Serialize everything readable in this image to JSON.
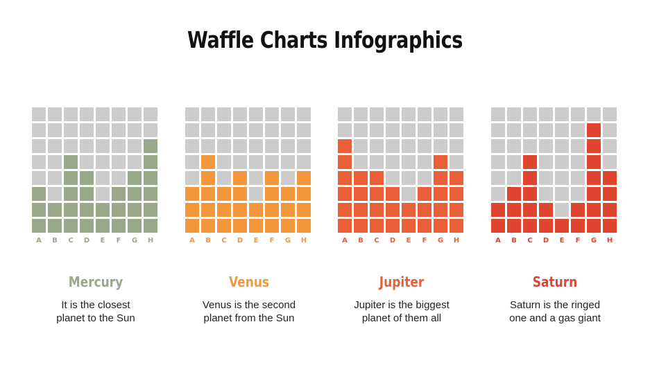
{
  "title": "Waffle Charts Infographics",
  "chart_data": [
    {
      "type": "bar",
      "name": "Mercury",
      "color": "#9aa98a",
      "categories": [
        "A",
        "B",
        "C",
        "D",
        "E",
        "F",
        "G",
        "H"
      ],
      "values": [
        3,
        2,
        5,
        4,
        2,
        3,
        4,
        6
      ],
      "ylim": [
        0,
        8
      ],
      "description": [
        "It is the closest",
        "planet to the Sun"
      ]
    },
    {
      "type": "bar",
      "name": "Venus",
      "color": "#f4963c",
      "categories": [
        "A",
        "B",
        "C",
        "D",
        "E",
        "F",
        "G",
        "H"
      ],
      "values": [
        3,
        5,
        3,
        4,
        2,
        4,
        3,
        4
      ],
      "ylim": [
        0,
        8
      ],
      "description": [
        "Venus is the second",
        "planet from the Sun"
      ]
    },
    {
      "type": "bar",
      "name": "Jupiter",
      "color": "#e96038",
      "categories": [
        "A",
        "B",
        "C",
        "D",
        "E",
        "F",
        "G",
        "H"
      ],
      "values": [
        6,
        4,
        4,
        3,
        2,
        3,
        5,
        4
      ],
      "ylim": [
        0,
        8
      ],
      "description": [
        "Jupiter is the biggest",
        "planet of them all"
      ]
    },
    {
      "type": "bar",
      "name": "Saturn",
      "color": "#e04530",
      "categories": [
        "A",
        "B",
        "C",
        "D",
        "E",
        "F",
        "G",
        "H"
      ],
      "values": [
        2,
        3,
        5,
        2,
        1,
        2,
        7,
        4
      ],
      "ylim": [
        0,
        8
      ],
      "description": [
        "Saturn is the ringed",
        "one and a gas giant"
      ]
    }
  ],
  "empty_color": "#cccccc"
}
